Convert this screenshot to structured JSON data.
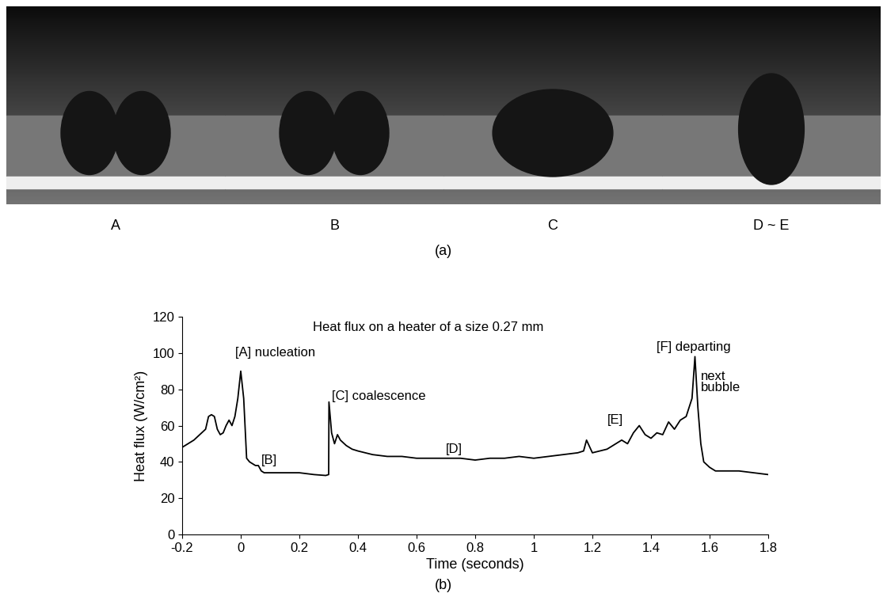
{
  "images": {
    "labels": [
      "A",
      "B",
      "C",
      "D ~ E"
    ],
    "caption": "(a)"
  },
  "chart_data": {
    "type": "line",
    "title": "Heat flux on a heater of a size 0.27 mm",
    "caption": "(b)",
    "x_label": "Time (seconds)",
    "y_label": "Heat flux (W/cm²)",
    "color": "#000000",
    "x": [
      -0.2,
      -0.18,
      -0.16,
      -0.14,
      -0.12,
      -0.11,
      -0.1,
      -0.09,
      -0.08,
      -0.07,
      -0.06,
      -0.05,
      -0.04,
      -0.03,
      -0.02,
      -0.01,
      0.0,
      0.01,
      0.02,
      0.03,
      0.05,
      0.06,
      0.07,
      0.08,
      0.1,
      0.15,
      0.2,
      0.25,
      0.29,
      0.3,
      0.301,
      0.31,
      0.32,
      0.33,
      0.34,
      0.36,
      0.38,
      0.4,
      0.45,
      0.5,
      0.55,
      0.6,
      0.65,
      0.7,
      0.75,
      0.8,
      0.85,
      0.9,
      0.95,
      1.0,
      1.05,
      1.1,
      1.15,
      1.17,
      1.18,
      1.2,
      1.25,
      1.28,
      1.3,
      1.32,
      1.34,
      1.36,
      1.38,
      1.4,
      1.42,
      1.44,
      1.46,
      1.48,
      1.5,
      1.52,
      1.54,
      1.55,
      1.56,
      1.57,
      1.58,
      1.6,
      1.62,
      1.65,
      1.7,
      1.75,
      1.8
    ],
    "values": [
      48,
      50,
      52,
      55,
      58,
      65,
      66,
      65,
      58,
      55,
      56,
      60,
      63,
      60,
      65,
      75,
      90,
      75,
      42,
      40,
      38,
      38,
      35,
      34,
      34,
      34,
      34,
      33,
      32.5,
      33,
      73,
      56,
      50,
      55,
      52,
      49,
      47,
      46,
      44,
      43,
      43,
      42,
      42,
      42,
      42,
      41,
      42,
      42,
      43,
      42,
      43,
      44,
      45,
      46,
      52,
      45,
      47,
      50,
      52,
      50,
      56,
      60,
      55,
      53,
      56,
      55,
      62,
      58,
      63,
      65,
      75,
      98,
      70,
      50,
      40,
      37,
      35,
      35,
      35,
      34,
      33
    ],
    "xlim": [
      -0.2,
      1.8
    ],
    "xticks": [
      -0.2,
      0,
      0.2,
      0.4,
      0.6,
      0.8,
      1,
      1.2,
      1.4,
      1.6,
      1.8
    ],
    "ylim": [
      0,
      120
    ],
    "yticks": [
      0,
      20,
      40,
      60,
      80,
      100,
      120
    ],
    "annotations": [
      {
        "text": "[A] nucleation",
        "x": -0.02,
        "y": 100
      },
      {
        "text": "[B]",
        "x": 0.07,
        "y": 41
      },
      {
        "text": "[C] coalescence",
        "x": 0.31,
        "y": 76
      },
      {
        "text": "[D]",
        "x": 0.7,
        "y": 47
      },
      {
        "text": "[E]",
        "x": 1.25,
        "y": 63
      },
      {
        "text": "[F] departing",
        "x": 1.42,
        "y": 103
      },
      {
        "text": "next\nbubble",
        "x": 1.57,
        "y": 84
      }
    ]
  }
}
